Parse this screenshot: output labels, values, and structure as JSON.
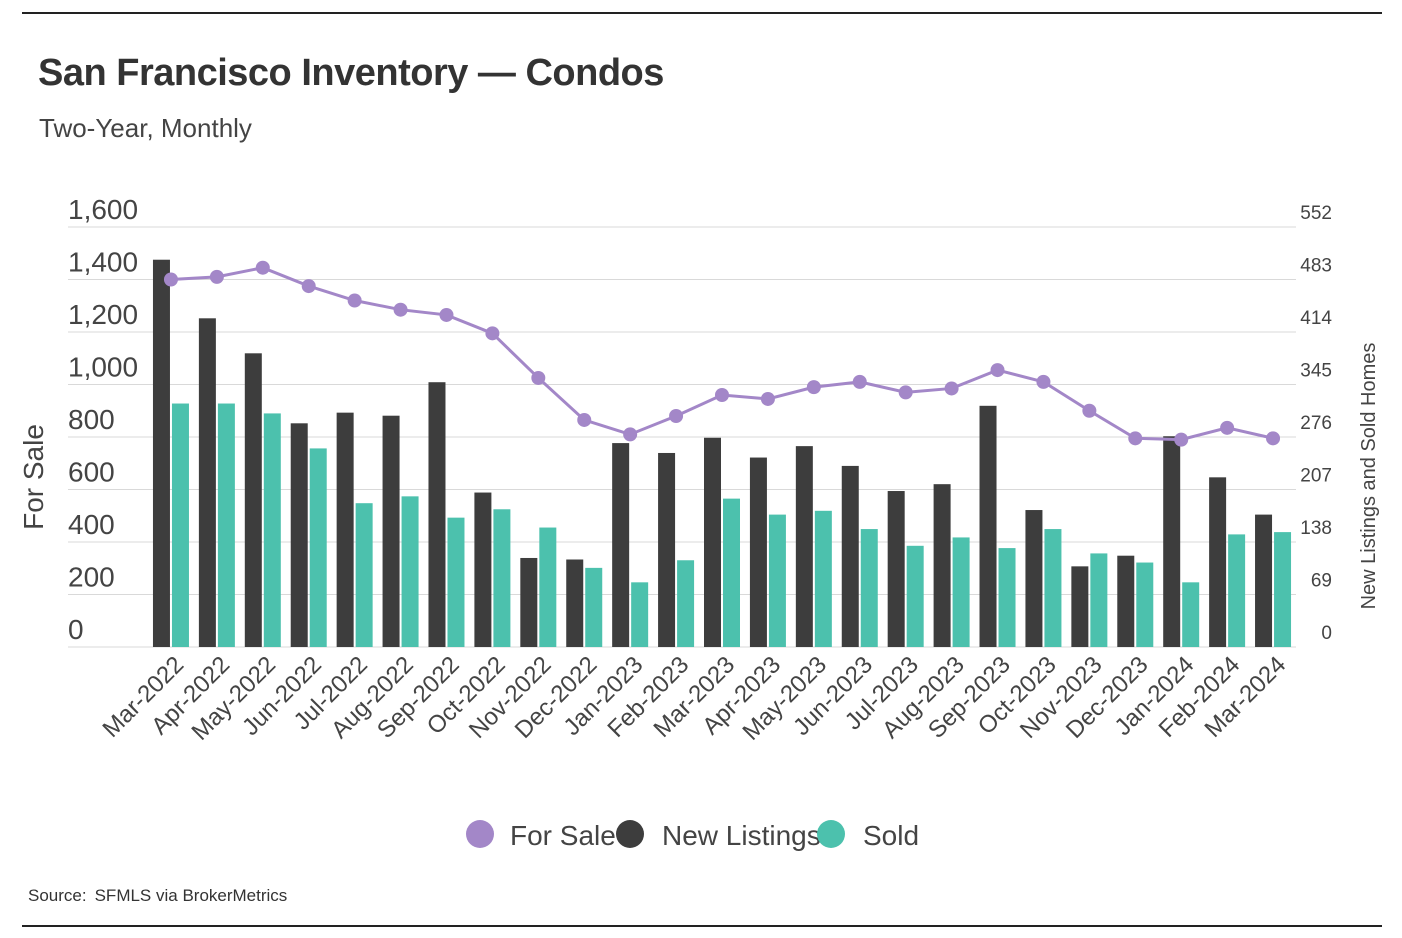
{
  "page": {
    "title": "San Francisco Inventory — Condos",
    "subtitle": "Two-Year, Monthly",
    "source_label": "Source:",
    "source_value": "SFMLS via BrokerMetrics"
  },
  "colors": {
    "for_sale": "#a387c8",
    "new_listings": "#3d3d3d",
    "sold": "#4cc1ad",
    "grid": "#d9d9d9",
    "axis_text": "#444444"
  },
  "chart_data": {
    "type": "bar",
    "title": "San Francisco Inventory — Condos",
    "subtitle": "Two-Year, Monthly",
    "categories": [
      "Mar-2022",
      "Apr-2022",
      "May-2022",
      "Jun-2022",
      "Jul-2022",
      "Aug-2022",
      "Sep-2022",
      "Oct-2022",
      "Nov-2022",
      "Dec-2022",
      "Jan-2023",
      "Feb-2023",
      "Mar-2023",
      "Apr-2023",
      "May-2023",
      "Jun-2023",
      "Jul-2023",
      "Aug-2023",
      "Sep-2023",
      "Oct-2023",
      "Nov-2023",
      "Dec-2023",
      "Jan-2024",
      "Feb-2024",
      "Mar-2024"
    ],
    "ylabel_left": "For Sale",
    "ylabel_right": "New Listings and Sold Homes",
    "ylim_left": [
      0,
      1600
    ],
    "ylim_right": [
      0,
      552
    ],
    "yticks_left": [
      "1,600",
      "1,400",
      "1,200",
      "1,000",
      "800",
      "600",
      "400",
      "200",
      "0"
    ],
    "yticks_right": [
      "552",
      "483",
      "414",
      "345",
      "276",
      "207",
      "138",
      "69",
      "0"
    ],
    "grid": true,
    "legend_position": "bottom-center",
    "series": [
      {
        "name": "For Sale",
        "type": "line",
        "axis": "left",
        "values": [
          1400,
          1410,
          1445,
          1375,
          1320,
          1285,
          1265,
          1195,
          1025,
          865,
          810,
          880,
          960,
          945,
          990,
          1010,
          970,
          985,
          1055,
          1010,
          900,
          795,
          790,
          835,
          795
        ]
      },
      {
        "name": "New Listings",
        "type": "bar",
        "axis": "right",
        "values": [
          509,
          432,
          386,
          294,
          308,
          304,
          348,
          203,
          117,
          115,
          268,
          255,
          275,
          249,
          264,
          238,
          205,
          214,
          317,
          180,
          106,
          120,
          277,
          223,
          174
        ]
      },
      {
        "name": "Sold",
        "type": "bar",
        "axis": "right",
        "values": [
          320,
          320,
          307,
          261,
          189,
          198,
          170,
          181,
          157,
          104,
          85,
          114,
          195,
          174,
          179,
          155,
          133,
          144,
          130,
          155,
          123,
          111,
          85,
          148,
          151
        ]
      }
    ]
  }
}
